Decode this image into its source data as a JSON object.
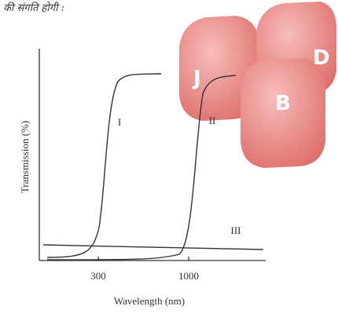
{
  "header": "की संगति होगी :",
  "chart": {
    "y_label": "Transmission (%)",
    "x_label": "Wavelength (nm)",
    "x_tick_labels": [
      "300",
      "1000"
    ],
    "curve_labels": [
      "I",
      "II",
      "III"
    ]
  },
  "logo": {
    "letters": [
      "J",
      "D",
      "B"
    ]
  }
}
